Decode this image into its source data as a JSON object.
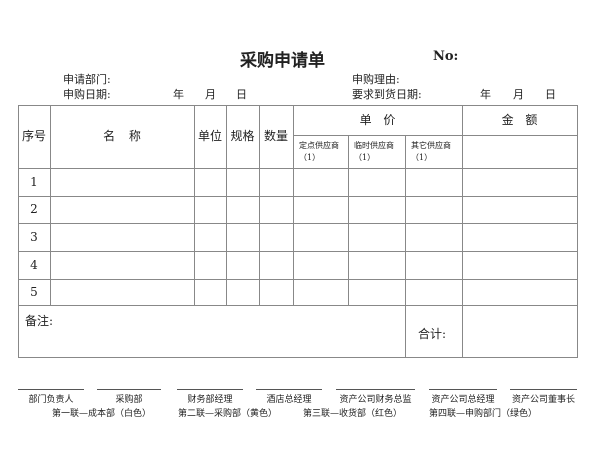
{
  "title": "采购申请单",
  "no_label": "No:",
  "fields": {
    "dept": "申请部门:",
    "reason": "申购理由:",
    "date": "申购日期:",
    "due": "要求到货日期:",
    "year": "年",
    "month": "月",
    "day": "日"
  },
  "table": {
    "headers": {
      "seq": "序号",
      "name": "名 称",
      "unit": "单位",
      "spec": "规格",
      "qty": "数量",
      "price": "单 价",
      "amount": "金 额"
    },
    "price_sub": [
      "定点供应商 （1）",
      "临时供应商 （1）",
      "其它供应商 （1）"
    ],
    "rows": [
      "1",
      "2",
      "3",
      "4",
      "5"
    ],
    "remark": "备注:",
    "total": "合计:"
  },
  "signatures": [
    "部门负责人",
    "采购部",
    "财务部经理",
    "酒店总经理",
    "资产公司财务总监",
    "资产公司总经理",
    "资产公司董事长"
  ],
  "copies": [
    "第一联—成本部（白色）",
    "第二联—采购部（黄色）",
    "第三联—收货部（红色）",
    "第四联—申购部门（绿色）"
  ]
}
